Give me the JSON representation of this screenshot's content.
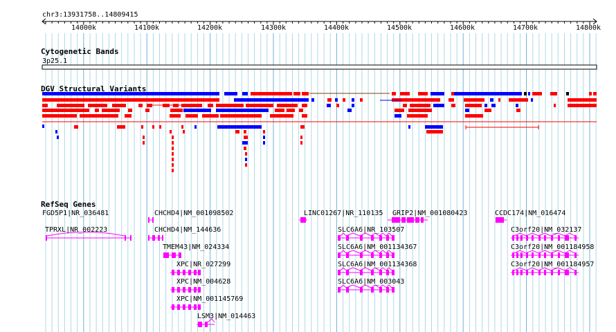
{
  "ruler": {
    "location": "chr3:13931758..14809415",
    "ticks": [
      "14000k",
      "14100k",
      "14200k",
      "14300k",
      "14400k",
      "14500k",
      "14600k",
      "14700k",
      "14800k"
    ]
  },
  "tracks": {
    "cytoband": {
      "title": "Cytogenetic Bands",
      "band": "3p25.1"
    },
    "dgv": {
      "title": "DGV Structural Variants"
    },
    "refseq": {
      "title": "RefSeq Genes"
    }
  },
  "colors": {
    "gridline": "#add8e6",
    "loss": "#ff0000",
    "gain": "#0000ff",
    "gene": "#ff00ff"
  },
  "genes": [
    "FGD5P1|NR_036481",
    "TPRXL|NR_002223",
    "CHCHD4|NM_001098502",
    "CHCHD4|NM_144636",
    "TMEM43|NM_024334",
    "XPC|NR_027299",
    "XPC|NM_004628",
    "XPC|NM_001145769",
    "LSM3|NM_014463",
    "LINC01267|NR_110135",
    "GRIP2|NM_001080423",
    "SLC6A6|NR_103507",
    "SLC6A6|NM_001134367",
    "SLC6A6|NM_001134368",
    "SLC6A6|NM_003043",
    "CCDC174|NM_016474",
    "C3orf20|NM_032137",
    "C3orf20|NM_001184958",
    "C3orf20|NM_001184957"
  ]
}
